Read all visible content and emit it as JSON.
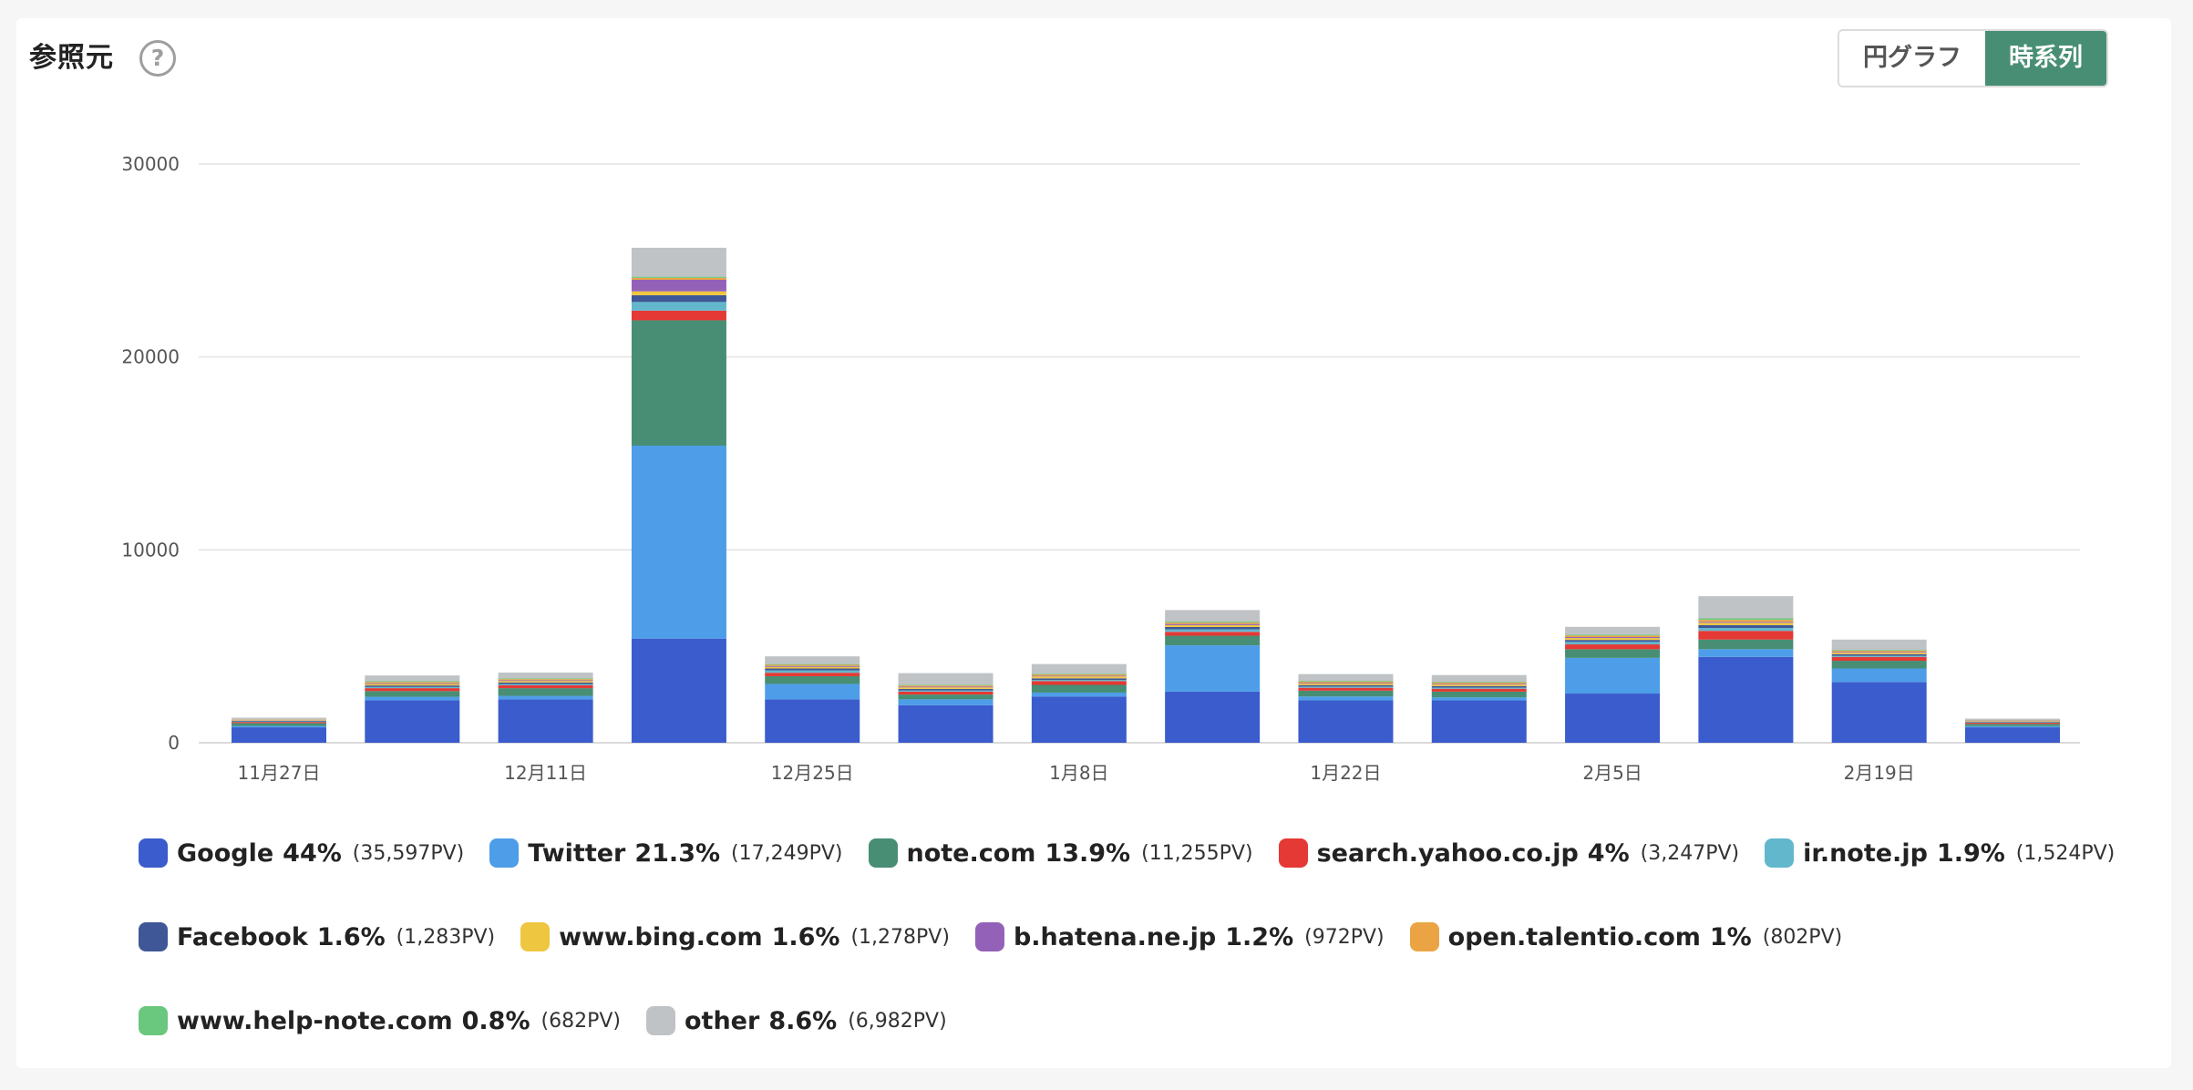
{
  "header": {
    "title": "参照元",
    "help_icon_glyph": "?",
    "view_toggle": [
      {
        "label": "円グラフ",
        "active": false
      },
      {
        "label": "時系列",
        "active": true
      }
    ]
  },
  "chart_data": {
    "type": "bar",
    "stacked": true,
    "ylim": [
      0,
      30000
    ],
    "yticks": [
      0,
      10000,
      20000,
      30000
    ],
    "ytick_labels": [
      "0",
      "10000",
      "20000",
      "30000"
    ],
    "xlabel": "",
    "ylabel": "",
    "grid": true,
    "x_tick_labels": [
      {
        "bar": 0,
        "label": "11月27日"
      },
      {
        "bar": 2,
        "label": "12月11日"
      },
      {
        "bar": 4,
        "label": "12月25日"
      },
      {
        "bar": 6,
        "label": "1月8日"
      },
      {
        "bar": 8,
        "label": "1月22日"
      },
      {
        "bar": 10,
        "label": "2月5日"
      },
      {
        "bar": 12,
        "label": "2月19日"
      }
    ],
    "bar_count": 14,
    "series": [
      {
        "name": "Google",
        "color": "#3a5ccc",
        "values": [
          800,
          2200,
          2250,
          5400,
          2250,
          1950,
          2400,
          2650,
          2200,
          2200,
          2550,
          4450,
          3150,
          800
        ]
      },
      {
        "name": "Twitter",
        "color": "#4d9de8",
        "values": [
          70,
          180,
          180,
          10000,
          800,
          300,
          200,
          2400,
          200,
          150,
          1850,
          400,
          700,
          60
        ]
      },
      {
        "name": "note.com",
        "color": "#478e74",
        "values": [
          150,
          300,
          400,
          6500,
          400,
          250,
          400,
          500,
          300,
          300,
          450,
          500,
          400,
          120
        ]
      },
      {
        "name": "search.yahoo.co.jp",
        "color": "#e53935",
        "values": [
          60,
          150,
          150,
          500,
          180,
          150,
          200,
          200,
          150,
          150,
          250,
          450,
          200,
          60
        ]
      },
      {
        "name": "ir.note.jp",
        "color": "#62b7cc",
        "values": [
          30,
          60,
          60,
          450,
          120,
          60,
          60,
          130,
          60,
          60,
          130,
          150,
          60,
          30
        ]
      },
      {
        "name": "Facebook",
        "color": "#3f5796",
        "values": [
          30,
          80,
          80,
          350,
          100,
          80,
          80,
          120,
          80,
          80,
          100,
          150,
          80,
          30
        ]
      },
      {
        "name": "www.bing.com",
        "color": "#efc640",
        "values": [
          30,
          80,
          80,
          200,
          80,
          80,
          100,
          100,
          80,
          80,
          100,
          120,
          80,
          30
        ]
      },
      {
        "name": "b.hatena.ne.jp",
        "color": "#9461b8",
        "values": [
          20,
          40,
          40,
          600,
          50,
          40,
          40,
          60,
          40,
          40,
          50,
          50,
          40,
          20
        ]
      },
      {
        "name": "open.talentio.com",
        "color": "#eba444",
        "values": [
          20,
          60,
          60,
          100,
          60,
          60,
          60,
          70,
          60,
          60,
          80,
          100,
          60,
          20
        ]
      },
      {
        "name": "www.help-note.com",
        "color": "#6ac77e",
        "values": [
          10,
          40,
          40,
          60,
          40,
          40,
          40,
          50,
          40,
          40,
          50,
          80,
          40,
          10
        ]
      },
      {
        "name": "other",
        "color": "#c0c3c6",
        "values": [
          80,
          300,
          300,
          1500,
          400,
          600,
          500,
          600,
          350,
          350,
          400,
          1150,
          540,
          70
        ]
      }
    ]
  },
  "legend": [
    {
      "name": "Google",
      "pct": "44%",
      "pv": "(35,597PV)",
      "color": "#3a5ccc"
    },
    {
      "name": "Twitter",
      "pct": "21.3%",
      "pv": "(17,249PV)",
      "color": "#4d9de8"
    },
    {
      "name": "note.com",
      "pct": "13.9%",
      "pv": "(11,255PV)",
      "color": "#478e74"
    },
    {
      "name": "search.yahoo.co.jp",
      "pct": "4%",
      "pv": "(3,247PV)",
      "color": "#e53935"
    },
    {
      "name": "ir.note.jp",
      "pct": "1.9%",
      "pv": "(1,524PV)",
      "color": "#62b7cc"
    },
    {
      "name": "Facebook",
      "pct": "1.6%",
      "pv": "(1,283PV)",
      "color": "#3f5796"
    },
    {
      "name": "www.bing.com",
      "pct": "1.6%",
      "pv": "(1,278PV)",
      "color": "#efc640"
    },
    {
      "name": "b.hatena.ne.jp",
      "pct": "1.2%",
      "pv": "(972PV)",
      "color": "#9461b8"
    },
    {
      "name": "open.talentio.com",
      "pct": "1%",
      "pv": "(802PV)",
      "color": "#eba444"
    },
    {
      "name": "www.help-note.com",
      "pct": "0.8%",
      "pv": "(682PV)",
      "color": "#6ac77e"
    },
    {
      "name": "other",
      "pct": "8.6%",
      "pv": "(6,982PV)",
      "color": "#c0c3c6"
    }
  ]
}
